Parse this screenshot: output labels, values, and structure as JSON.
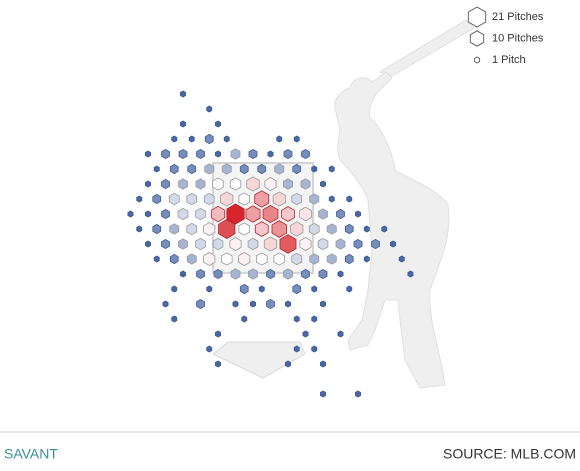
{
  "chart_data": {
    "type": "hexbin",
    "legend": [
      {
        "label": "21 Pitches",
        "value": 21
      },
      {
        "label": "10 Pitches",
        "value": 10
      },
      {
        "label": "1 Pitch",
        "value": 1
      }
    ],
    "bins": [
      {
        "x": -8,
        "y": -8,
        "count": 1
      },
      {
        "x": -5,
        "y": -7,
        "count": 1
      },
      {
        "x": -8,
        "y": -6,
        "count": 1
      },
      {
        "x": -4,
        "y": -6,
        "count": 1
      },
      {
        "x": -9,
        "y": -5,
        "count": 1
      },
      {
        "x": -7,
        "y": -5,
        "count": 1
      },
      {
        "x": -5,
        "y": -5,
        "count": 2
      },
      {
        "x": -3,
        "y": -5,
        "count": 1
      },
      {
        "x": 3,
        "y": -5,
        "count": 1
      },
      {
        "x": 5,
        "y": -5,
        "count": 1
      },
      {
        "x": -12,
        "y": -4,
        "count": 1
      },
      {
        "x": -10,
        "y": -4,
        "count": 2
      },
      {
        "x": -8,
        "y": -4,
        "count": 2
      },
      {
        "x": -6,
        "y": -4,
        "count": 2
      },
      {
        "x": -4,
        "y": -4,
        "count": 1
      },
      {
        "x": -2,
        "y": -4,
        "count": 3
      },
      {
        "x": 0,
        "y": -4,
        "count": 2
      },
      {
        "x": 2,
        "y": -4,
        "count": 1
      },
      {
        "x": 4,
        "y": -4,
        "count": 2
      },
      {
        "x": 6,
        "y": -4,
        "count": 2
      },
      {
        "x": -11,
        "y": -3,
        "count": 1
      },
      {
        "x": -9,
        "y": -3,
        "count": 2
      },
      {
        "x": -7,
        "y": -3,
        "count": 2
      },
      {
        "x": -5,
        "y": -3,
        "count": 3
      },
      {
        "x": -3,
        "y": -3,
        "count": 3
      },
      {
        "x": -1,
        "y": -3,
        "count": 2
      },
      {
        "x": 1,
        "y": -3,
        "count": 2
      },
      {
        "x": 3,
        "y": -3,
        "count": 3
      },
      {
        "x": 5,
        "y": -3,
        "count": 2
      },
      {
        "x": 7,
        "y": -3,
        "count": 1
      },
      {
        "x": 9,
        "y": -3,
        "count": 1
      },
      {
        "x": -12,
        "y": -2,
        "count": 1
      },
      {
        "x": -10,
        "y": -2,
        "count": 2
      },
      {
        "x": -8,
        "y": -2,
        "count": 3
      },
      {
        "x": -6,
        "y": -2,
        "count": 3
      },
      {
        "x": -4,
        "y": -2,
        "count": 5
      },
      {
        "x": -2,
        "y": -2,
        "count": 5
      },
      {
        "x": 0,
        "y": -2,
        "count": 8
      },
      {
        "x": 2,
        "y": -2,
        "count": 6
      },
      {
        "x": 4,
        "y": -2,
        "count": 3
      },
      {
        "x": 6,
        "y": -2,
        "count": 3
      },
      {
        "x": 8,
        "y": -2,
        "count": 1
      },
      {
        "x": -13,
        "y": -1,
        "count": 1
      },
      {
        "x": -11,
        "y": -1,
        "count": 2
      },
      {
        "x": -9,
        "y": -1,
        "count": 4
      },
      {
        "x": -7,
        "y": -1,
        "count": 4
      },
      {
        "x": -5,
        "y": -1,
        "count": 4
      },
      {
        "x": -3,
        "y": -1,
        "count": 8
      },
      {
        "x": -1,
        "y": -1,
        "count": 5
      },
      {
        "x": 1,
        "y": -1,
        "count": 12
      },
      {
        "x": 3,
        "y": -1,
        "count": 8
      },
      {
        "x": 5,
        "y": -1,
        "count": 4
      },
      {
        "x": 7,
        "y": -1,
        "count": 3
      },
      {
        "x": 9,
        "y": -1,
        "count": 1
      },
      {
        "x": 11,
        "y": -1,
        "count": 1
      },
      {
        "x": -14,
        "y": 0,
        "count": 1
      },
      {
        "x": -12,
        "y": 0,
        "count": 1
      },
      {
        "x": -10,
        "y": 0,
        "count": 2
      },
      {
        "x": -8,
        "y": 0,
        "count": 4
      },
      {
        "x": -6,
        "y": 0,
        "count": 4
      },
      {
        "x": -4,
        "y": 0,
        "count": 10
      },
      {
        "x": -2,
        "y": 0,
        "count": 21
      },
      {
        "x": 0,
        "y": 0,
        "count": 12
      },
      {
        "x": 2,
        "y": 0,
        "count": 14
      },
      {
        "x": 4,
        "y": 0,
        "count": 9
      },
      {
        "x": 6,
        "y": 0,
        "count": 7
      },
      {
        "x": 8,
        "y": 0,
        "count": 3
      },
      {
        "x": 10,
        "y": 0,
        "count": 2
      },
      {
        "x": 12,
        "y": 0,
        "count": 1
      },
      {
        "x": -13,
        "y": 1,
        "count": 1
      },
      {
        "x": -11,
        "y": 1,
        "count": 2
      },
      {
        "x": -9,
        "y": 1,
        "count": 3
      },
      {
        "x": -7,
        "y": 1,
        "count": 4
      },
      {
        "x": -5,
        "y": 1,
        "count": 6
      },
      {
        "x": -3,
        "y": 1,
        "count": 18
      },
      {
        "x": -1,
        "y": 1,
        "count": 5
      },
      {
        "x": 1,
        "y": 1,
        "count": 9
      },
      {
        "x": 3,
        "y": 1,
        "count": 13
      },
      {
        "x": 5,
        "y": 1,
        "count": 8
      },
      {
        "x": 7,
        "y": 1,
        "count": 4
      },
      {
        "x": 9,
        "y": 1,
        "count": 3
      },
      {
        "x": 11,
        "y": 1,
        "count": 2
      },
      {
        "x": 13,
        "y": 1,
        "count": 1
      },
      {
        "x": 15,
        "y": 1,
        "count": 1
      },
      {
        "x": -12,
        "y": 2,
        "count": 1
      },
      {
        "x": -10,
        "y": 2,
        "count": 2
      },
      {
        "x": -8,
        "y": 2,
        "count": 3
      },
      {
        "x": -6,
        "y": 2,
        "count": 4
      },
      {
        "x": -4,
        "y": 2,
        "count": 4
      },
      {
        "x": -2,
        "y": 2,
        "count": 6
      },
      {
        "x": 0,
        "y": 2,
        "count": 4
      },
      {
        "x": 2,
        "y": 2,
        "count": 8
      },
      {
        "x": 4,
        "y": 2,
        "count": 17
      },
      {
        "x": 6,
        "y": 2,
        "count": 6
      },
      {
        "x": 8,
        "y": 2,
        "count": 4
      },
      {
        "x": 10,
        "y": 2,
        "count": 3
      },
      {
        "x": 12,
        "y": 2,
        "count": 2
      },
      {
        "x": 14,
        "y": 2,
        "count": 2
      },
      {
        "x": 16,
        "y": 2,
        "count": 1
      },
      {
        "x": -11,
        "y": 3,
        "count": 1
      },
      {
        "x": -9,
        "y": 3,
        "count": 2
      },
      {
        "x": -7,
        "y": 3,
        "count": 3
      },
      {
        "x": -5,
        "y": 3,
        "count": 6
      },
      {
        "x": -3,
        "y": 3,
        "count": 5
      },
      {
        "x": -1,
        "y": 3,
        "count": 6
      },
      {
        "x": 1,
        "y": 3,
        "count": 5
      },
      {
        "x": 3,
        "y": 3,
        "count": 5
      },
      {
        "x": 5,
        "y": 3,
        "count": 4
      },
      {
        "x": 7,
        "y": 3,
        "count": 3
      },
      {
        "x": 9,
        "y": 3,
        "count": 3
      },
      {
        "x": 11,
        "y": 3,
        "count": 2
      },
      {
        "x": 13,
        "y": 3,
        "count": 1
      },
      {
        "x": 17,
        "y": 3,
        "count": 1
      },
      {
        "x": -8,
        "y": 4,
        "count": 1
      },
      {
        "x": -6,
        "y": 4,
        "count": 2
      },
      {
        "x": -4,
        "y": 4,
        "count": 2
      },
      {
        "x": -2,
        "y": 4,
        "count": 3
      },
      {
        "x": 0,
        "y": 4,
        "count": 3
      },
      {
        "x": 2,
        "y": 4,
        "count": 2
      },
      {
        "x": 4,
        "y": 4,
        "count": 3
      },
      {
        "x": 6,
        "y": 4,
        "count": 2
      },
      {
        "x": 8,
        "y": 4,
        "count": 2
      },
      {
        "x": 10,
        "y": 4,
        "count": 1
      },
      {
        "x": 18,
        "y": 4,
        "count": 1
      },
      {
        "x": -9,
        "y": 5,
        "count": 1
      },
      {
        "x": -5,
        "y": 5,
        "count": 1
      },
      {
        "x": -1,
        "y": 5,
        "count": 2
      },
      {
        "x": 1,
        "y": 5,
        "count": 1
      },
      {
        "x": 5,
        "y": 5,
        "count": 2
      },
      {
        "x": 7,
        "y": 5,
        "count": 1
      },
      {
        "x": 11,
        "y": 5,
        "count": 1
      },
      {
        "x": -10,
        "y": 6,
        "count": 1
      },
      {
        "x": -6,
        "y": 6,
        "count": 2
      },
      {
        "x": -2,
        "y": 6,
        "count": 1
      },
      {
        "x": 0,
        "y": 6,
        "count": 1
      },
      {
        "x": 2,
        "y": 6,
        "count": 2
      },
      {
        "x": 4,
        "y": 6,
        "count": 1
      },
      {
        "x": 8,
        "y": 6,
        "count": 1
      },
      {
        "x": -9,
        "y": 7,
        "count": 1
      },
      {
        "x": -1,
        "y": 7,
        "count": 1
      },
      {
        "x": 5,
        "y": 7,
        "count": 1
      },
      {
        "x": 7,
        "y": 7,
        "count": 1
      },
      {
        "x": -4,
        "y": 8,
        "count": 1
      },
      {
        "x": 6,
        "y": 8,
        "count": 1
      },
      {
        "x": 10,
        "y": 8,
        "count": 1
      },
      {
        "x": -5,
        "y": 9,
        "count": 1
      },
      {
        "x": 5,
        "y": 9,
        "count": 1
      },
      {
        "x": 7,
        "y": 9,
        "count": 1
      },
      {
        "x": -4,
        "y": 10,
        "count": 1
      },
      {
        "x": 4,
        "y": 10,
        "count": 1
      },
      {
        "x": 8,
        "y": 10,
        "count": 1
      },
      {
        "x": 8,
        "y": 12,
        "count": 1
      },
      {
        "x": 12,
        "y": 12,
        "count": 1
      }
    ]
  },
  "footer": {
    "left": "SAVANT",
    "right": "SOURCE: MLB.COM"
  }
}
